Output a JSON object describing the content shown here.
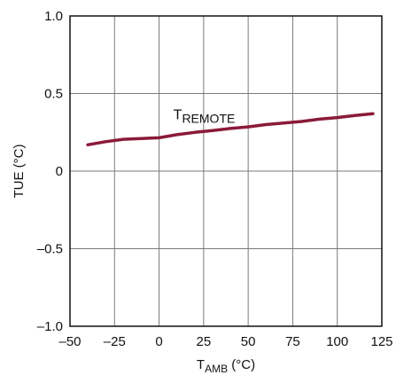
{
  "chart_data": {
    "type": "line",
    "title": "",
    "xlabel": "T",
    "xlabel_sub": "AMB",
    "xlabel_unit": " (°C)",
    "ylabel": "TUE (°C)",
    "xlim": [
      -50,
      125
    ],
    "ylim": [
      -1.0,
      1.0
    ],
    "xticks": [
      -50,
      -25,
      0,
      25,
      50,
      75,
      100,
      125
    ],
    "xtick_labels": [
      "–50",
      "–25",
      "0",
      "25",
      "50",
      "75",
      "100",
      "125"
    ],
    "yticks": [
      -1.0,
      -0.5,
      0,
      0.5,
      1.0
    ],
    "ytick_labels": [
      "–1.0",
      "–0.5",
      "0",
      "0.5",
      "1.0"
    ],
    "grid": true,
    "legend": "none",
    "series": [
      {
        "name": "T",
        "name_sub": "REMOTE",
        "color": "#8b1a3a",
        "x": [
          -40,
          -30,
          -20,
          -10,
          0,
          10,
          20,
          30,
          40,
          50,
          60,
          70,
          80,
          90,
          100,
          110,
          120
        ],
        "y": [
          0.17,
          0.19,
          0.205,
          0.21,
          0.215,
          0.235,
          0.25,
          0.262,
          0.275,
          0.285,
          0.3,
          0.31,
          0.32,
          0.335,
          0.345,
          0.358,
          0.37
        ]
      }
    ],
    "annotation_anchor": {
      "x": 8,
      "y": 0.37
    }
  }
}
